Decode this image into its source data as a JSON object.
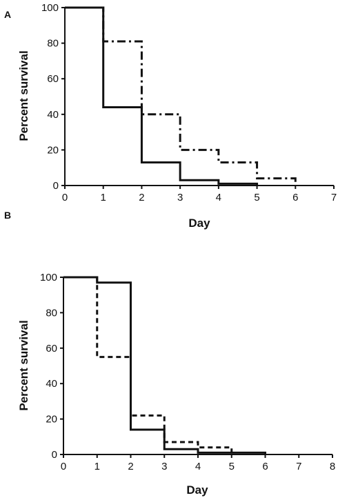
{
  "chart_data": [
    {
      "type": "line",
      "panel_label": "A",
      "xlabel": "Day",
      "ylabel": "Percent survival",
      "xlim": [
        0,
        7
      ],
      "ylim": [
        0,
        100
      ],
      "x_ticks": [
        "0",
        "1",
        "2",
        "3",
        "4",
        "5",
        "6",
        "7"
      ],
      "y_ticks": [
        "0",
        "20",
        "40",
        "60",
        "80",
        "100"
      ],
      "grid": false,
      "series": [
        {
          "style": "solid",
          "x": [
            0,
            1,
            2,
            3,
            4,
            5
          ],
          "values": [
            100,
            44,
            13,
            3,
            1,
            0
          ]
        },
        {
          "style": "dash-dot",
          "x": [
            0,
            1,
            2,
            3,
            4,
            5,
            6
          ],
          "values": [
            100,
            81,
            40,
            20,
            13,
            4,
            0
          ]
        }
      ]
    },
    {
      "type": "line",
      "panel_label": "B",
      "xlabel": "Day",
      "ylabel": "Percent survival",
      "xlim": [
        0,
        8
      ],
      "ylim": [
        0,
        100
      ],
      "x_ticks": [
        "0",
        "1",
        "2",
        "3",
        "4",
        "5",
        "6",
        "7",
        "8"
      ],
      "y_ticks": [
        "0",
        "20",
        "40",
        "60",
        "80",
        "100"
      ],
      "grid": false,
      "series": [
        {
          "style": "solid",
          "x": [
            0,
            1,
            2,
            3,
            4,
            6
          ],
          "values": [
            100,
            97,
            14,
            3,
            1,
            0
          ]
        },
        {
          "style": "dashed",
          "x": [
            0,
            1,
            2,
            3,
            4,
            5
          ],
          "values": [
            100,
            55,
            22,
            7,
            4,
            0
          ]
        }
      ]
    }
  ]
}
